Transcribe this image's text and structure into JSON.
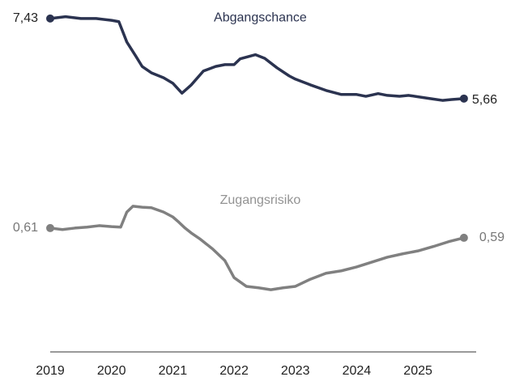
{
  "chart_data": {
    "type": "line",
    "xlim": [
      2019,
      2025.95
    ],
    "xticks": [
      2019,
      2020,
      2021,
      2022,
      2023,
      2024,
      2025
    ],
    "ylim": [
      0.06,
      7.66
    ],
    "y2lim": [
      0.355,
      1.063
    ],
    "series": [
      {
        "name": "Abgangschance",
        "color": "#2b3350",
        "x": [
          2019,
          2019.25,
          2019.5,
          2019.75,
          2020,
          2020.12,
          2020.25,
          2020.4,
          2020.5,
          2020.65,
          2020.85,
          2021,
          2021.15,
          2021.3,
          2021.5,
          2021.7,
          2021.85,
          2022,
          2022.1,
          2022.35,
          2022.5,
          2022.7,
          2022.9,
          2023,
          2023.25,
          2023.5,
          2023.75,
          2024,
          2024.15,
          2024.35,
          2024.5,
          2024.7,
          2024.85,
          2025,
          2025.2,
          2025.4,
          2025.55,
          2025.75
        ],
        "values": [
          7.43,
          7.47,
          7.43,
          7.43,
          7.39,
          7.36,
          6.91,
          6.59,
          6.37,
          6.23,
          6.12,
          6.0,
          5.78,
          5.96,
          6.27,
          6.37,
          6.41,
          6.41,
          6.54,
          6.63,
          6.55,
          6.34,
          6.16,
          6.09,
          5.96,
          5.84,
          5.75,
          5.75,
          5.71,
          5.77,
          5.73,
          5.71,
          5.73,
          5.7,
          5.66,
          5.62,
          5.64,
          5.66
        ],
        "value_labels": [
          "7,43",
          null,
          null,
          null,
          null,
          null,
          null,
          null,
          null,
          null,
          null,
          null,
          null,
          null,
          null,
          null,
          null,
          null,
          null,
          null,
          null,
          null,
          null,
          null,
          null,
          null,
          null,
          null,
          null,
          null,
          null,
          null,
          null,
          null,
          null,
          null,
          null,
          "5,66"
        ]
      },
      {
        "name": "Zugangsrisiko",
        "color": "#808080",
        "axis": "y2",
        "x": [
          2019,
          2019.2,
          2019.4,
          2019.6,
          2019.8,
          2020,
          2020.15,
          2020.25,
          2020.35,
          2020.5,
          2020.65,
          2020.85,
          2021,
          2021.1,
          2021.2,
          2021.3,
          2021.45,
          2021.65,
          2021.85,
          2022,
          2022.2,
          2022.4,
          2022.6,
          2022.8,
          2023,
          2023.25,
          2023.5,
          2023.75,
          2024,
          2024.25,
          2024.5,
          2024.75,
          2025,
          2025.25,
          2025.5,
          2025.75
        ],
        "values": [
          0.61,
          0.607,
          0.61,
          0.612,
          0.615,
          0.613,
          0.612,
          0.643,
          0.655,
          0.653,
          0.652,
          0.643,
          0.633,
          0.622,
          0.61,
          0.6,
          0.587,
          0.567,
          0.543,
          0.508,
          0.49,
          0.487,
          0.483,
          0.487,
          0.49,
          0.505,
          0.517,
          0.522,
          0.53,
          0.54,
          0.55,
          0.557,
          0.563,
          0.572,
          0.582,
          0.59
        ],
        "value_labels": [
          "0,61",
          null,
          null,
          null,
          null,
          null,
          null,
          null,
          null,
          null,
          null,
          null,
          null,
          null,
          null,
          null,
          null,
          null,
          null,
          null,
          null,
          null,
          null,
          null,
          null,
          null,
          null,
          null,
          null,
          null,
          null,
          null,
          null,
          null,
          null,
          "0,59"
        ]
      }
    ]
  }
}
